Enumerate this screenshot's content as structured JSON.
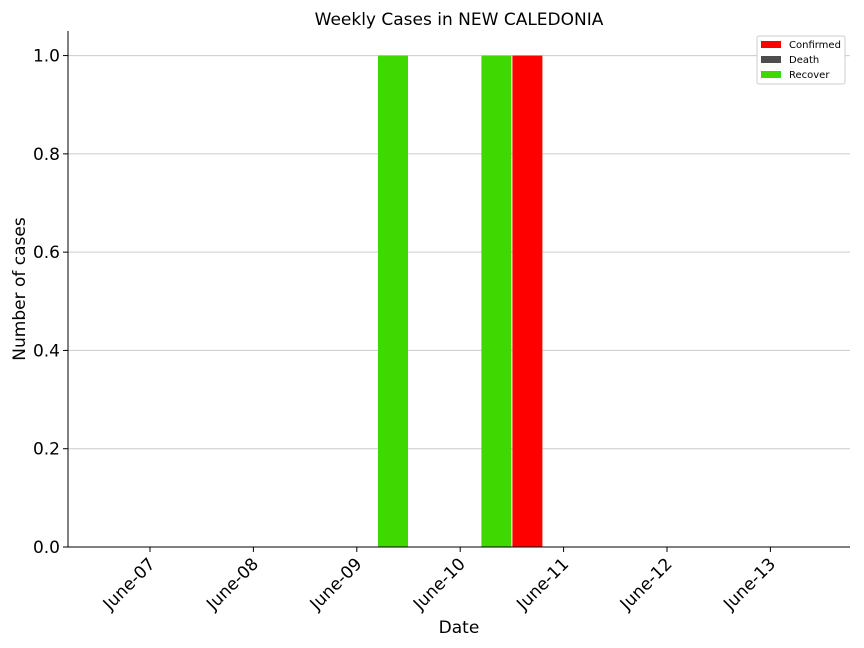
{
  "chart_data": {
    "type": "bar",
    "title": "Weekly Cases in NEW CALEDONIA",
    "xlabel": "Date",
    "ylabel": "Number of cases",
    "categories": [
      "June-07",
      "June-08",
      "June-09",
      "June-10",
      "June-11",
      "June-12",
      "June-13"
    ],
    "series": [
      {
        "name": "Confirmed",
        "color": "#ff0000",
        "values": [
          0,
          0,
          0,
          0,
          1,
          0,
          0
        ]
      },
      {
        "name": "Death",
        "color": "#4d4d4d",
        "values": [
          0,
          0,
          0,
          0,
          0,
          0,
          0
        ]
      },
      {
        "name": "Recover",
        "color": "#3fd800",
        "values": [
          0,
          0,
          1,
          1,
          0,
          0,
          0
        ]
      }
    ],
    "ylim": [
      0,
      1.05
    ],
    "yticks": [
      "0.0",
      "0.2",
      "0.4",
      "0.6",
      "0.8",
      "1.0"
    ],
    "grid": "horizontal",
    "legend_position": "top-right"
  }
}
